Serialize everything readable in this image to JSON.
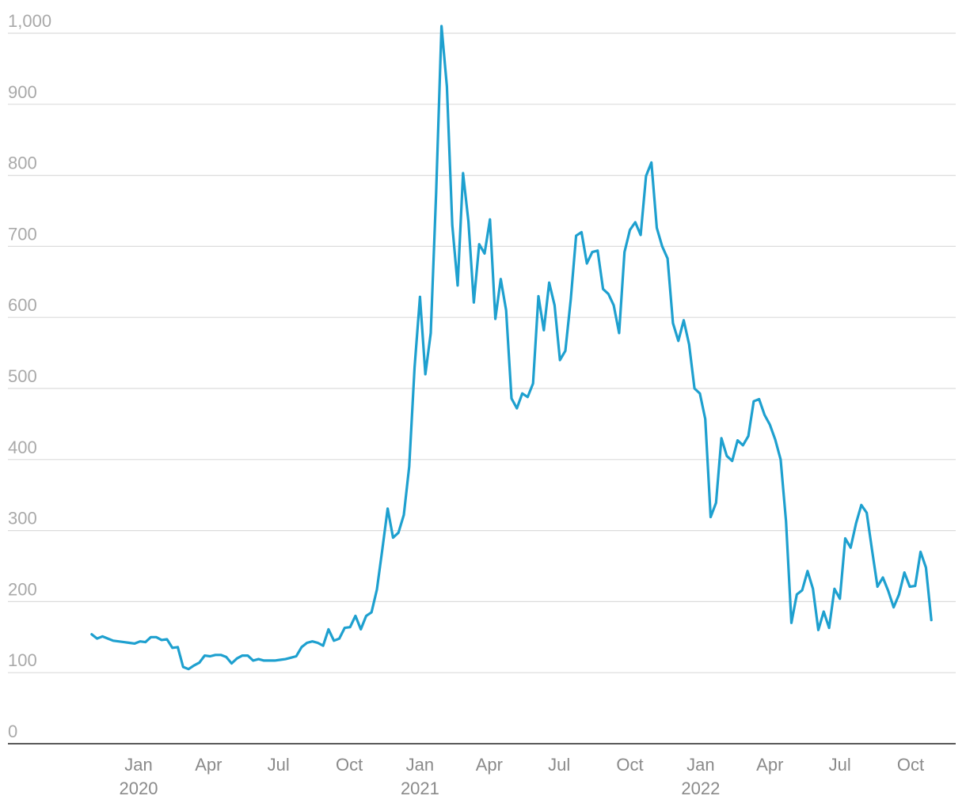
{
  "chart_data": {
    "type": "line",
    "title": "",
    "xlabel": "",
    "ylabel": "",
    "ylim": [
      0,
      1000
    ],
    "xlim": [
      "2019-10-11",
      "2022-11-26"
    ],
    "grid": true,
    "legend": "none",
    "colors": {
      "line": "#1ea0cf",
      "grid": "#dcdcdc",
      "axis": "#222222",
      "tick_text": "#a9a9a9"
    },
    "y_ticks": [
      {
        "value": 0,
        "label": "0"
      },
      {
        "value": 100,
        "label": "100"
      },
      {
        "value": 200,
        "label": "200"
      },
      {
        "value": 300,
        "label": "300"
      },
      {
        "value": 400,
        "label": "400"
      },
      {
        "value": 500,
        "label": "500"
      },
      {
        "value": 600,
        "label": "600"
      },
      {
        "value": 700,
        "label": "700"
      },
      {
        "value": 800,
        "label": "800"
      },
      {
        "value": 900,
        "label": "900"
      },
      {
        "value": 1000,
        "label": "1,000"
      }
    ],
    "x_ticks": [
      {
        "date": "2020-01-01",
        "label": "Jan",
        "year": "2020"
      },
      {
        "date": "2020-04-01",
        "label": "Apr",
        "year": ""
      },
      {
        "date": "2020-07-01",
        "label": "Jul",
        "year": ""
      },
      {
        "date": "2020-10-01",
        "label": "Oct",
        "year": ""
      },
      {
        "date": "2021-01-01",
        "label": "Jan",
        "year": "2021"
      },
      {
        "date": "2021-04-01",
        "label": "Apr",
        "year": ""
      },
      {
        "date": "2021-07-01",
        "label": "Jul",
        "year": ""
      },
      {
        "date": "2021-10-01",
        "label": "Oct",
        "year": ""
      },
      {
        "date": "2022-01-01",
        "label": "Jan",
        "year": "2022"
      },
      {
        "date": "2022-04-01",
        "label": "Apr",
        "year": ""
      },
      {
        "date": "2022-07-01",
        "label": "Jul",
        "year": ""
      },
      {
        "date": "2022-10-01",
        "label": "Oct",
        "year": ""
      }
    ],
    "series": [
      {
        "points": [
          [
            "2019-11-01",
            154
          ],
          [
            "2019-11-08",
            148
          ],
          [
            "2019-11-15",
            151
          ],
          [
            "2019-11-22",
            148
          ],
          [
            "2019-11-29",
            145
          ],
          [
            "2019-12-06",
            144
          ],
          [
            "2019-12-13",
            143
          ],
          [
            "2019-12-20",
            142
          ],
          [
            "2019-12-27",
            141
          ],
          [
            "2020-01-03",
            144
          ],
          [
            "2020-01-10",
            143
          ],
          [
            "2020-01-17",
            150
          ],
          [
            "2020-01-24",
            150
          ],
          [
            "2020-01-31",
            146
          ],
          [
            "2020-02-07",
            147
          ],
          [
            "2020-02-14",
            135
          ],
          [
            "2020-02-21",
            136
          ],
          [
            "2020-02-28",
            108
          ],
          [
            "2020-03-06",
            105
          ],
          [
            "2020-03-13",
            110
          ],
          [
            "2020-03-20",
            114
          ],
          [
            "2020-03-27",
            124
          ],
          [
            "2020-04-03",
            123
          ],
          [
            "2020-04-10",
            125
          ],
          [
            "2020-04-17",
            125
          ],
          [
            "2020-04-24",
            122
          ],
          [
            "2020-05-01",
            113
          ],
          [
            "2020-05-08",
            120
          ],
          [
            "2020-05-15",
            124
          ],
          [
            "2020-05-22",
            124
          ],
          [
            "2020-05-29",
            117
          ],
          [
            "2020-06-05",
            119
          ],
          [
            "2020-06-12",
            117
          ],
          [
            "2020-06-19",
            117
          ],
          [
            "2020-06-26",
            117
          ],
          [
            "2020-07-03",
            118
          ],
          [
            "2020-07-10",
            119
          ],
          [
            "2020-07-17",
            121
          ],
          [
            "2020-07-24",
            123
          ],
          [
            "2020-07-31",
            136
          ],
          [
            "2020-08-07",
            142
          ],
          [
            "2020-08-14",
            144
          ],
          [
            "2020-08-21",
            142
          ],
          [
            "2020-08-28",
            138
          ],
          [
            "2020-09-04",
            161
          ],
          [
            "2020-09-11",
            145
          ],
          [
            "2020-09-18",
            148
          ],
          [
            "2020-09-25",
            163
          ],
          [
            "2020-10-02",
            164
          ],
          [
            "2020-10-09",
            180
          ],
          [
            "2020-10-16",
            161
          ],
          [
            "2020-10-23",
            180
          ],
          [
            "2020-10-30",
            185
          ],
          [
            "2020-11-06",
            217
          ],
          [
            "2020-11-13",
            273
          ],
          [
            "2020-11-20",
            331
          ],
          [
            "2020-11-27",
            290
          ],
          [
            "2020-12-04",
            297
          ],
          [
            "2020-12-11",
            322
          ],
          [
            "2020-12-18",
            390
          ],
          [
            "2020-12-25",
            530
          ],
          [
            "2021-01-01",
            629
          ],
          [
            "2021-01-08",
            520
          ],
          [
            "2021-01-15",
            578
          ],
          [
            "2021-01-22",
            775
          ],
          [
            "2021-01-29",
            1010
          ],
          [
            "2021-02-05",
            925
          ],
          [
            "2021-02-12",
            730
          ],
          [
            "2021-02-19",
            645
          ],
          [
            "2021-02-26",
            803
          ],
          [
            "2021-03-05",
            735
          ],
          [
            "2021-03-12",
            621
          ],
          [
            "2021-03-19",
            703
          ],
          [
            "2021-03-26",
            690
          ],
          [
            "2021-04-02",
            738
          ],
          [
            "2021-04-09",
            598
          ],
          [
            "2021-04-16",
            654
          ],
          [
            "2021-04-23",
            610
          ],
          [
            "2021-04-30",
            486
          ],
          [
            "2021-05-07",
            472
          ],
          [
            "2021-05-14",
            493
          ],
          [
            "2021-05-21",
            488
          ],
          [
            "2021-05-28",
            507
          ],
          [
            "2021-06-04",
            630
          ],
          [
            "2021-06-11",
            582
          ],
          [
            "2021-06-18",
            649
          ],
          [
            "2021-06-25",
            617
          ],
          [
            "2021-07-02",
            540
          ],
          [
            "2021-07-09",
            553
          ],
          [
            "2021-07-16",
            625
          ],
          [
            "2021-07-23",
            715
          ],
          [
            "2021-07-30",
            720
          ],
          [
            "2021-08-06",
            676
          ],
          [
            "2021-08-13",
            692
          ],
          [
            "2021-08-20",
            694
          ],
          [
            "2021-08-27",
            640
          ],
          [
            "2021-09-03",
            633
          ],
          [
            "2021-09-10",
            617
          ],
          [
            "2021-09-17",
            578
          ],
          [
            "2021-09-24",
            692
          ],
          [
            "2021-10-01",
            723
          ],
          [
            "2021-10-08",
            734
          ],
          [
            "2021-10-15",
            716
          ],
          [
            "2021-10-22",
            799
          ],
          [
            "2021-10-29",
            818
          ],
          [
            "2021-11-05",
            726
          ],
          [
            "2021-11-12",
            700
          ],
          [
            "2021-11-19",
            683
          ],
          [
            "2021-11-26",
            592
          ],
          [
            "2021-12-03",
            567
          ],
          [
            "2021-12-10",
            596
          ],
          [
            "2021-12-17",
            562
          ],
          [
            "2021-12-24",
            500
          ],
          [
            "2021-12-31",
            493
          ],
          [
            "2022-01-07",
            457
          ],
          [
            "2022-01-14",
            319
          ],
          [
            "2022-01-21",
            339
          ],
          [
            "2022-01-28",
            430
          ],
          [
            "2022-02-04",
            405
          ],
          [
            "2022-02-11",
            398
          ],
          [
            "2022-02-18",
            427
          ],
          [
            "2022-02-25",
            420
          ],
          [
            "2022-03-04",
            433
          ],
          [
            "2022-03-11",
            482
          ],
          [
            "2022-03-18",
            485
          ],
          [
            "2022-03-25",
            463
          ],
          [
            "2022-04-01",
            449
          ],
          [
            "2022-04-08",
            428
          ],
          [
            "2022-04-15",
            400
          ],
          [
            "2022-04-22",
            313
          ],
          [
            "2022-04-29",
            170
          ],
          [
            "2022-05-06",
            210
          ],
          [
            "2022-05-13",
            216
          ],
          [
            "2022-05-20",
            243
          ],
          [
            "2022-05-27",
            218
          ],
          [
            "2022-06-03",
            160
          ],
          [
            "2022-06-10",
            186
          ],
          [
            "2022-06-17",
            163
          ],
          [
            "2022-06-24",
            218
          ],
          [
            "2022-07-01",
            204
          ],
          [
            "2022-07-08",
            289
          ],
          [
            "2022-07-15",
            276
          ],
          [
            "2022-07-22",
            310
          ],
          [
            "2022-07-29",
            336
          ],
          [
            "2022-08-05",
            325
          ],
          [
            "2022-08-12",
            272
          ],
          [
            "2022-08-19",
            221
          ],
          [
            "2022-08-26",
            234
          ],
          [
            "2022-09-02",
            215
          ],
          [
            "2022-09-09",
            192
          ],
          [
            "2022-09-16",
            210
          ],
          [
            "2022-09-23",
            241
          ],
          [
            "2022-09-30",
            221
          ],
          [
            "2022-10-07",
            222
          ],
          [
            "2022-10-14",
            270
          ],
          [
            "2022-10-21",
            248
          ],
          [
            "2022-10-28",
            174
          ]
        ]
      }
    ]
  }
}
